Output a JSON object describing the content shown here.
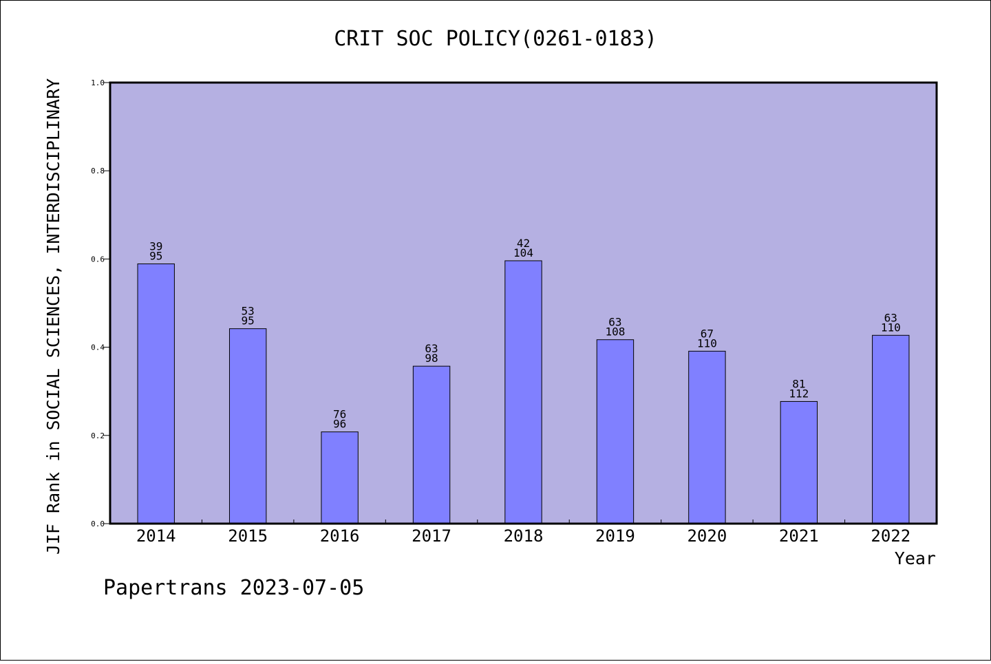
{
  "chart_data": {
    "type": "bar",
    "title": "CRIT SOC POLICY(0261-0183)",
    "xlabel": "Year",
    "ylabel": "JIF Rank in SOCIAL SCIENCES, INTERDISCIPLINARY",
    "ylim": [
      0,
      1.0
    ],
    "yticks": [
      "0.0",
      "0.2",
      "0.4",
      "0.6",
      "0.8",
      "1.0"
    ],
    "categories": [
      "2014",
      "2015",
      "2016",
      "2017",
      "2018",
      "2019",
      "2020",
      "2021",
      "2022"
    ],
    "values": [
      0.589,
      0.442,
      0.208,
      0.357,
      0.596,
      0.417,
      0.391,
      0.277,
      0.427
    ],
    "ranks": [
      "39",
      "53",
      "76",
      "63",
      "42",
      "63",
      "67",
      "81",
      "63"
    ],
    "totals": [
      "95",
      "95",
      "96",
      "98",
      "104",
      "108",
      "110",
      "112",
      "110"
    ],
    "grid": false,
    "plot_background": "#b5b0e2",
    "bar_color": "#8080ff"
  },
  "footer": {
    "text": "Papertrans 2023-07-05"
  }
}
